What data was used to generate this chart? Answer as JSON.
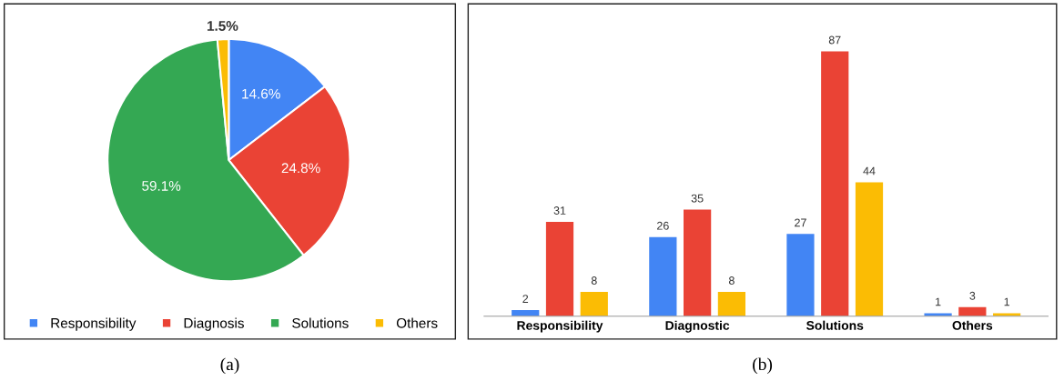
{
  "chart_data": [
    {
      "type": "pie",
      "categories": [
        "Responsibility",
        "Diagnosis",
        "Solutions",
        "Others"
      ],
      "values": [
        14.6,
        24.8,
        59.1,
        1.5
      ],
      "colors": [
        "#4285f4",
        "#ea4335",
        "#34a853",
        "#fbbc04"
      ],
      "value_labels": [
        "14.6%",
        "24.8%",
        "59.1%",
        "1.5%"
      ],
      "legend": "bottom",
      "annotations": [
        "(a)"
      ]
    },
    {
      "type": "bar",
      "categories": [
        "Responsibility",
        "Diagnostic",
        "Solutions",
        "Others"
      ],
      "series": [
        {
          "color": "#4285f4",
          "values": [
            2,
            26,
            27,
            1
          ]
        },
        {
          "color": "#ea4335",
          "values": [
            31,
            35,
            87,
            3
          ]
        },
        {
          "color": "#fbbc04",
          "values": [
            8,
            8,
            44,
            1
          ]
        }
      ],
      "data_labels": true,
      "annotations": [
        "(b)"
      ]
    }
  ]
}
